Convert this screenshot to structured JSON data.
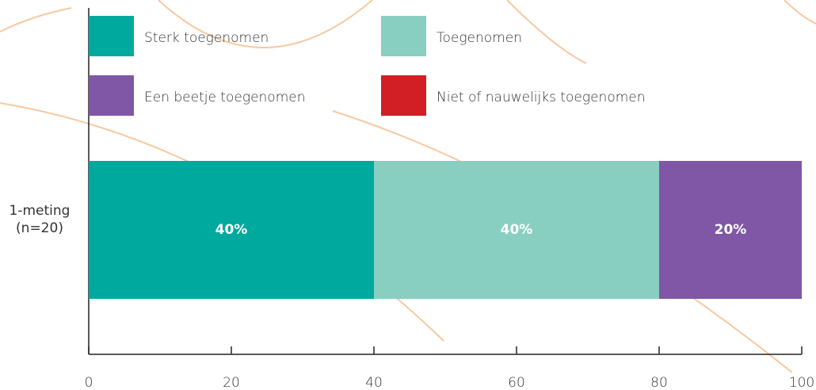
{
  "chart_data": {
    "type": "stacked_bar_horizontal",
    "categories": [
      "1-meting (n=20)"
    ],
    "series": [
      {
        "name": "Sterk toegenomen",
        "color": "#00a99d",
        "values": [
          40
        ],
        "value_labels": [
          "40%"
        ]
      },
      {
        "name": "Toegenomen",
        "color": "#88cfc1",
        "values": [
          40
        ],
        "value_labels": [
          "40%"
        ]
      },
      {
        "name": "Een beetje toegenomen",
        "color": "#7f57a6",
        "values": [
          20
        ],
        "value_labels": [
          "20%"
        ]
      },
      {
        "name": "Niet of nauwelijks toegenomen",
        "color": "#d21f26",
        "values": [
          0
        ]
      }
    ],
    "xlim": [
      0,
      100
    ],
    "xticks": [
      0,
      20,
      40,
      60,
      80,
      100
    ],
    "legend": "top"
  }
}
